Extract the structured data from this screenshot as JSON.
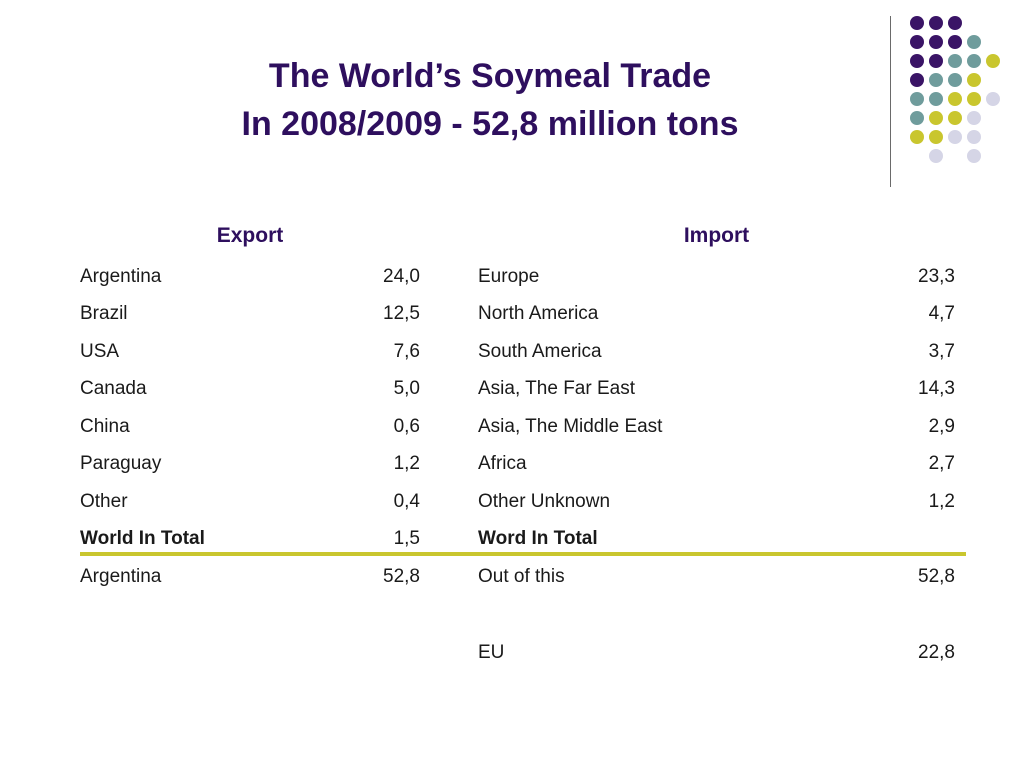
{
  "title": {
    "line1": "The World’s Soymeal Trade",
    "line2": "In 2008/2009 - 52,8 million tons"
  },
  "colors": {
    "title": "#2e0f5e",
    "separator": "#c9c62e",
    "dot_purple": "#3a1466",
    "dot_teal": "#6f9c9c",
    "dot_olive": "#c9c62e",
    "dot_lavender": "#d5d5e6"
  },
  "headers": {
    "export": "Export",
    "import": "Import"
  },
  "rows": [
    {
      "export_name": "Argentina",
      "export_value": "24,0",
      "import_name": "Europe",
      "import_value": "23,3"
    },
    {
      "export_name": "Brazil",
      "export_value": "12,5",
      "import_name": "North America",
      "import_value": "4,7"
    },
    {
      "export_name": "USA",
      "export_value": "7,6",
      "import_name": "South America",
      "import_value": "3,7"
    },
    {
      "export_name": "Canada",
      "export_value": "5,0",
      "import_name": "Asia, The Far East",
      "import_value": "14,3"
    },
    {
      "export_name": "China",
      "export_value": "0,6",
      "import_name": "Asia, The Middle East",
      "import_value": "2,9"
    },
    {
      "export_name": "Paraguay",
      "export_value": "1,2",
      "import_name": "Africa",
      "import_value": "2,7"
    },
    {
      "export_name": "Other",
      "export_value": "0,4",
      "import_name": "Other Unknown",
      "import_value": "1,2"
    },
    {
      "export_name": "World In Total",
      "export_value": "1,5",
      "import_name": "Word In Total",
      "import_value": ""
    },
    {
      "export_name": "Argentina",
      "export_value": "52,8",
      "import_name": "Out of this",
      "import_value": "52,8"
    },
    {
      "export_name": "",
      "export_value": "",
      "import_name": "",
      "import_value": ""
    },
    {
      "export_name": "",
      "export_value": "",
      "import_name": "EU",
      "import_value": "22,8"
    }
  ]
}
